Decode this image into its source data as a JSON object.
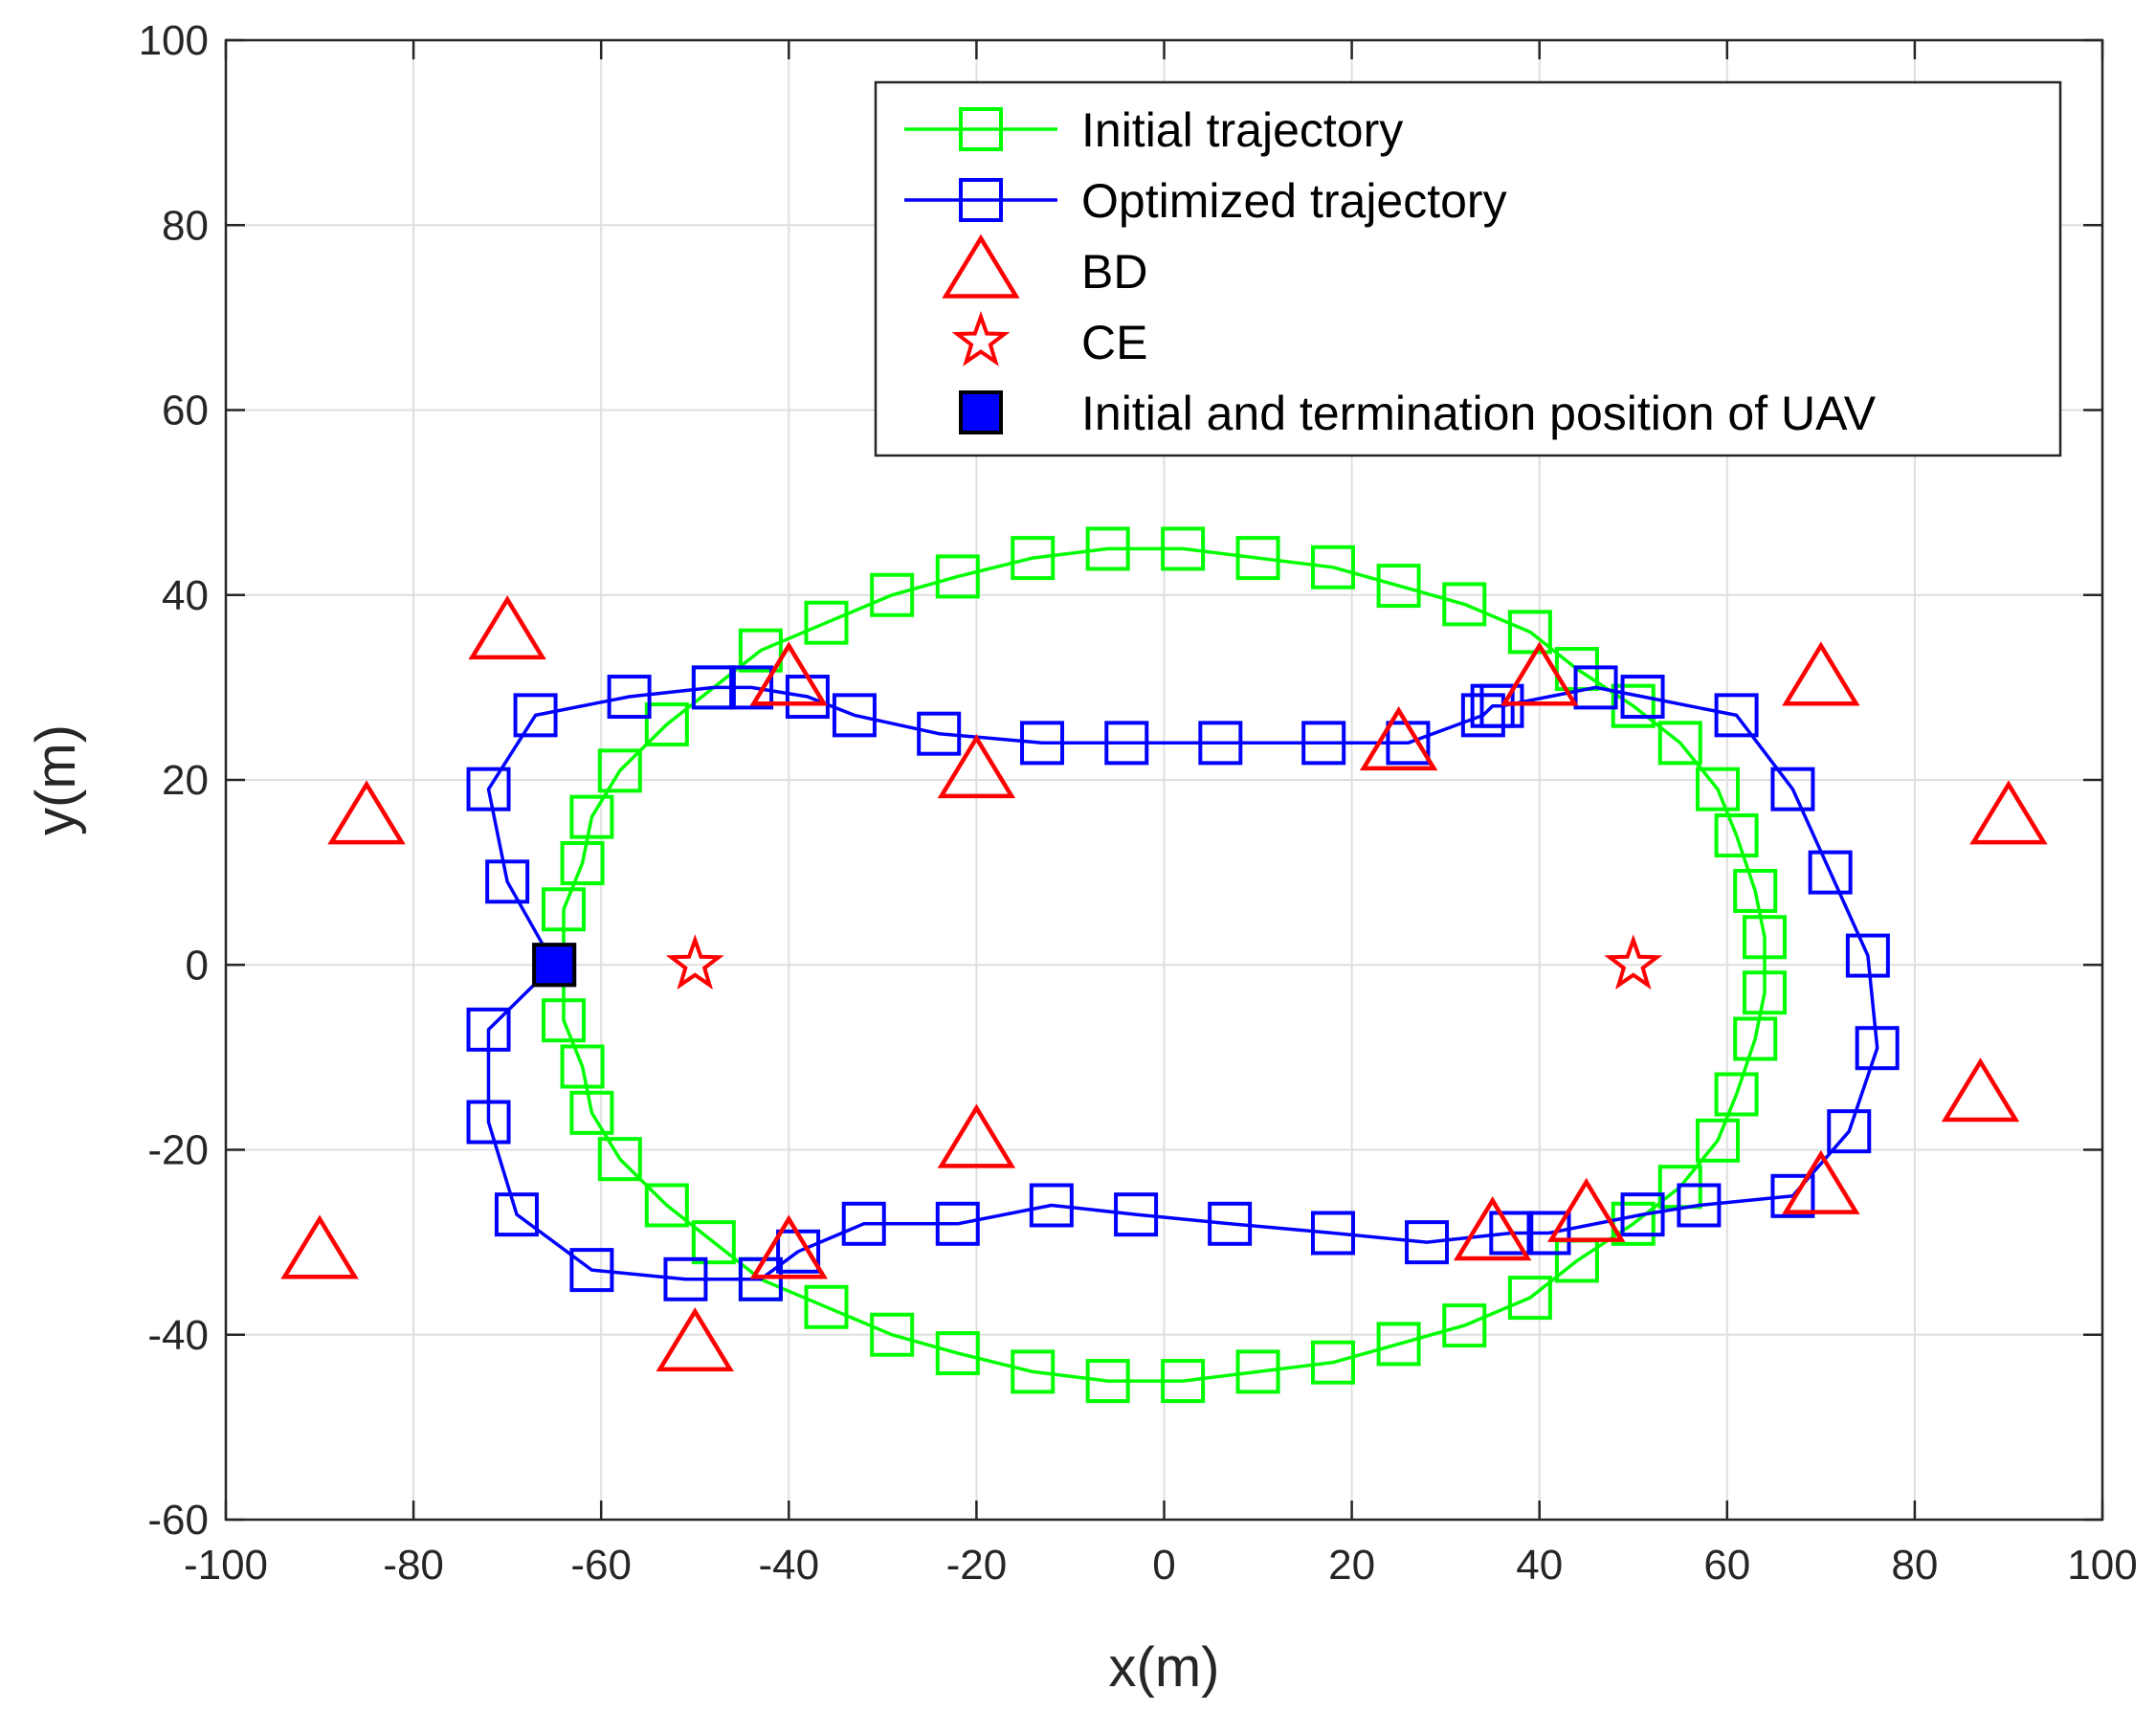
{
  "chart_data": {
    "type": "scatter",
    "xlabel": "x(m)",
    "ylabel": "y(m)",
    "xlim": [
      -100,
      100
    ],
    "ylim": [
      -60,
      100
    ],
    "xticks": [
      -100,
      -80,
      -60,
      -40,
      -20,
      0,
      20,
      40,
      60,
      80,
      100
    ],
    "yticks": [
      -60,
      -40,
      -20,
      0,
      20,
      40,
      60,
      80,
      100
    ],
    "grid": true,
    "legend_position": "top-right",
    "series": [
      {
        "name": "Initial trajectory",
        "style": "line-square",
        "color": "#00ff00",
        "points": [
          [
            -64,
            6
          ],
          [
            -62,
            11
          ],
          [
            -61,
            16
          ],
          [
            -58,
            21
          ],
          [
            -53,
            26
          ],
          [
            -48,
            30
          ],
          [
            -43,
            34
          ],
          [
            -36,
            37
          ],
          [
            -29,
            40
          ],
          [
            -22,
            42
          ],
          [
            -14,
            44
          ],
          [
            -6,
            45
          ],
          [
            2,
            45
          ],
          [
            10,
            44
          ],
          [
            18,
            43
          ],
          [
            25,
            41
          ],
          [
            32,
            39
          ],
          [
            39,
            36
          ],
          [
            44,
            32
          ],
          [
            50,
            28
          ],
          [
            55,
            24
          ],
          [
            59,
            19
          ],
          [
            61,
            14
          ],
          [
            63,
            8
          ],
          [
            64,
            3
          ],
          [
            64,
            -3
          ],
          [
            63,
            -8
          ],
          [
            61,
            -14
          ],
          [
            59,
            -19
          ],
          [
            55,
            -24
          ],
          [
            50,
            -28
          ],
          [
            44,
            -32
          ],
          [
            39,
            -36
          ],
          [
            32,
            -39
          ],
          [
            25,
            -41
          ],
          [
            18,
            -43
          ],
          [
            10,
            -44
          ],
          [
            2,
            -45
          ],
          [
            -6,
            -45
          ],
          [
            -14,
            -44
          ],
          [
            -22,
            -42
          ],
          [
            -29,
            -40
          ],
          [
            -36,
            -37
          ],
          [
            -43,
            -34
          ],
          [
            -48,
            -30
          ],
          [
            -53,
            -26
          ],
          [
            -58,
            -21
          ],
          [
            -61,
            -16
          ],
          [
            -62,
            -11
          ],
          [
            -64,
            -6
          ],
          [
            -64,
            6
          ]
        ]
      },
      {
        "name": "Optimized trajectory",
        "style": "line-square",
        "color": "#0000ff",
        "points": [
          [
            -65,
            0
          ],
          [
            -70,
            9
          ],
          [
            -72,
            19
          ],
          [
            -67,
            27
          ],
          [
            -57,
            29
          ],
          [
            -48,
            30
          ],
          [
            -44,
            30
          ],
          [
            -38,
            29
          ],
          [
            -33,
            27
          ],
          [
            -24,
            25
          ],
          [
            -13,
            24
          ],
          [
            -4,
            24
          ],
          [
            6,
            24
          ],
          [
            17,
            24
          ],
          [
            26,
            24
          ],
          [
            34,
            27
          ],
          [
            35,
            28
          ],
          [
            36,
            28
          ],
          [
            46,
            30
          ],
          [
            51,
            29
          ],
          [
            61,
            27
          ],
          [
            67,
            19
          ],
          [
            71,
            10
          ],
          [
            75,
            1
          ],
          [
            76,
            -9
          ],
          [
            73,
            -18
          ],
          [
            67,
            -25
          ],
          [
            57,
            -26
          ],
          [
            51,
            -27
          ],
          [
            41,
            -29
          ],
          [
            37,
            -29
          ],
          [
            28,
            -30
          ],
          [
            18,
            -29
          ],
          [
            7,
            -28
          ],
          [
            -3,
            -27
          ],
          [
            -12,
            -26
          ],
          [
            -22,
            -28
          ],
          [
            -32,
            -28
          ],
          [
            -39,
            -31
          ],
          [
            -43,
            -34
          ],
          [
            -51,
            -34
          ],
          [
            -61,
            -33
          ],
          [
            -69,
            -27
          ],
          [
            -72,
            -17
          ],
          [
            -72,
            -7
          ],
          [
            -65,
            0
          ]
        ]
      },
      {
        "name": "BD",
        "style": "triangle",
        "color": "#ff0000",
        "points": [
          [
            -70,
            36
          ],
          [
            -85,
            16
          ],
          [
            -40,
            31
          ],
          [
            -20,
            21
          ],
          [
            25,
            24
          ],
          [
            40,
            31
          ],
          [
            70,
            31
          ],
          [
            90,
            16
          ],
          [
            -90,
            -31
          ],
          [
            -50,
            -41
          ],
          [
            -40,
            -31
          ],
          [
            -20,
            -19
          ],
          [
            35,
            -29
          ],
          [
            45,
            -27
          ],
          [
            70,
            -24
          ],
          [
            87,
            -14
          ]
        ]
      },
      {
        "name": "CE",
        "style": "star",
        "color": "#ff0000",
        "points": [
          [
            -50,
            0
          ],
          [
            50,
            0
          ]
        ]
      },
      {
        "name": "Initial and termination position of UAV",
        "style": "filled-square",
        "color": "#0000ff",
        "points": [
          [
            -65,
            0
          ]
        ]
      }
    ]
  }
}
